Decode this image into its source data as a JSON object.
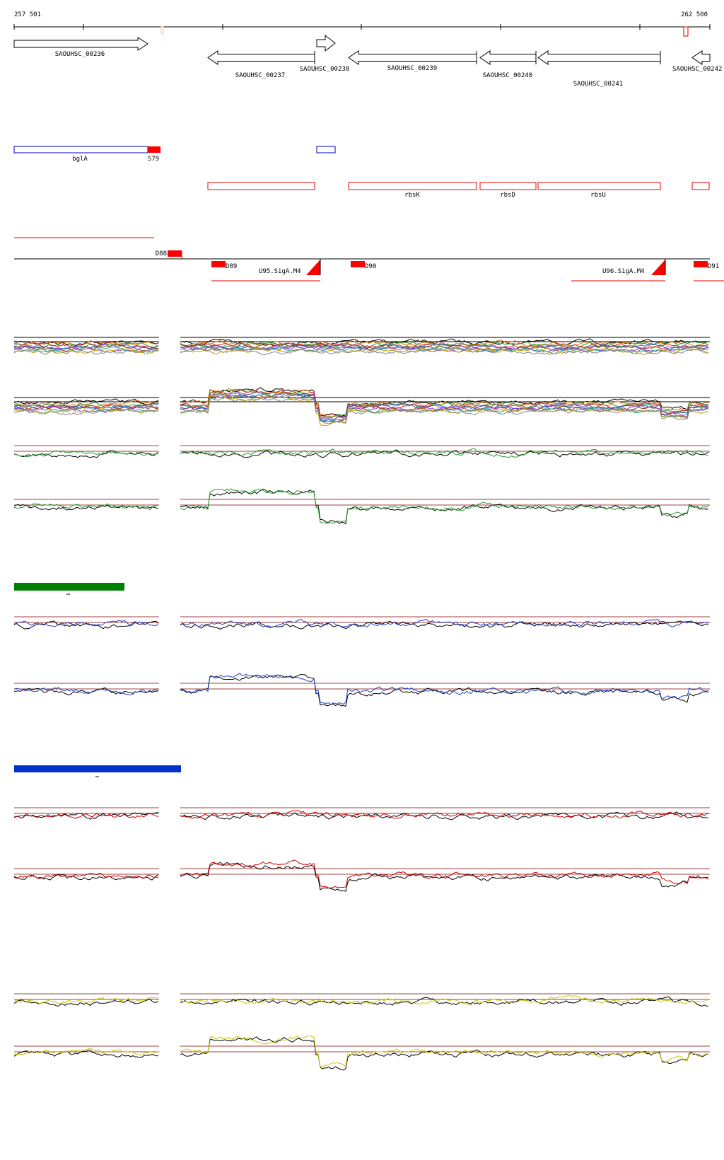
{
  "ruler": {
    "start": "257 501",
    "end": "262 500"
  },
  "genes": [
    "SAOUHSC_00236",
    "SAOUHSC_00237",
    "SAOUHSC_00238",
    "SAOUHSC_00239",
    "SAOUHSC_00240",
    "SAOUHSC_00241",
    "SAOUHSC_00242"
  ],
  "operons": [
    "bglA",
    "S79",
    "rbsK",
    "rbsD",
    "rbsU"
  ],
  "features": [
    "D88",
    "D89",
    "D90",
    "D91",
    "U95.SigA.M4",
    "U96.SigA.M4"
  ]
}
